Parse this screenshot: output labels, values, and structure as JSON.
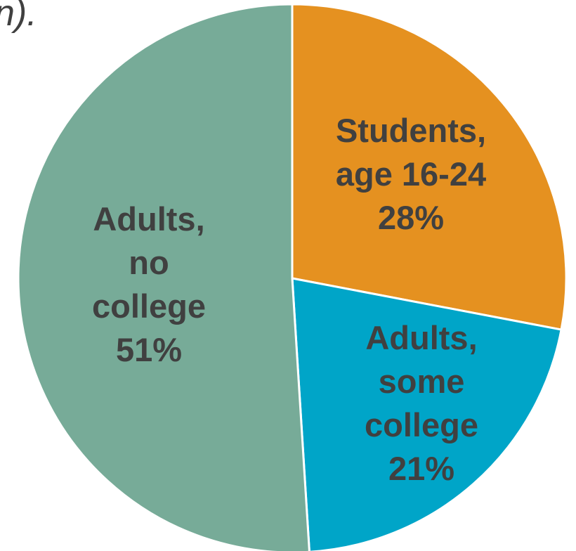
{
  "chart_data": {
    "type": "pie",
    "title": "",
    "title_fragment": "n).",
    "slices": [
      {
        "label_lines": [
          "Students,",
          "age 16-24"
        ],
        "value_label": "28%",
        "value": 28,
        "color": "#e59120"
      },
      {
        "label_lines": [
          "Adults,",
          "some",
          "college"
        ],
        "value_label": "21%",
        "value": 21,
        "color": "#00a5c8"
      },
      {
        "label_lines": [
          "Adults,",
          "no",
          "college"
        ],
        "value_label": "51%",
        "value": 51,
        "color": "#77ab98"
      }
    ],
    "start_angle_deg": 0,
    "direction": "clockwise",
    "legend": "none"
  }
}
